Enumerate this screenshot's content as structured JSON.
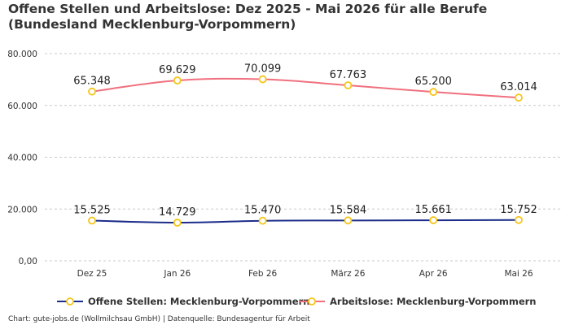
{
  "title": "Offene Stellen und Arbeitslose: Dez 2025 - Mai 2026 für alle Berufe (Bundesland Mecklenburg-Vorpommern)",
  "source": "Chart: gute-jobs.de (Wollmilchsau GmbH) | Datenquelle: Bundesagentur für Arbeit",
  "chart_data": {
    "type": "line",
    "categories": [
      "Dez 25",
      "Jan 26",
      "Feb 26",
      "März 26",
      "Apr 26",
      "Mai 26"
    ],
    "y_ticks": [
      "0,00",
      "20.000",
      "40.000",
      "60.000",
      "80.000"
    ],
    "ylim": [
      0,
      80000
    ],
    "grid": true,
    "legend": "bottom",
    "series": [
      {
        "name": "Offene Stellen: Mecklenburg-Vorpommern",
        "color": "#1c2d8a",
        "values": [
          15525,
          14729,
          15470,
          15584,
          15661,
          15752
        ],
        "labels": [
          "15.525",
          "14.729",
          "15.470",
          "15.584",
          "15.661",
          "15.752"
        ]
      },
      {
        "name": "Arbeitslose: Mecklenburg-Vorpommern",
        "color": "#f0707e",
        "values": [
          65348,
          69629,
          70099,
          67763,
          65200,
          63014
        ],
        "labels": [
          "65.348",
          "69.629",
          "70.099",
          "67.763",
          "65.200",
          "63.014"
        ]
      }
    ],
    "marker_stroke": "#f5c518",
    "marker_fill": "#ffffff"
  }
}
